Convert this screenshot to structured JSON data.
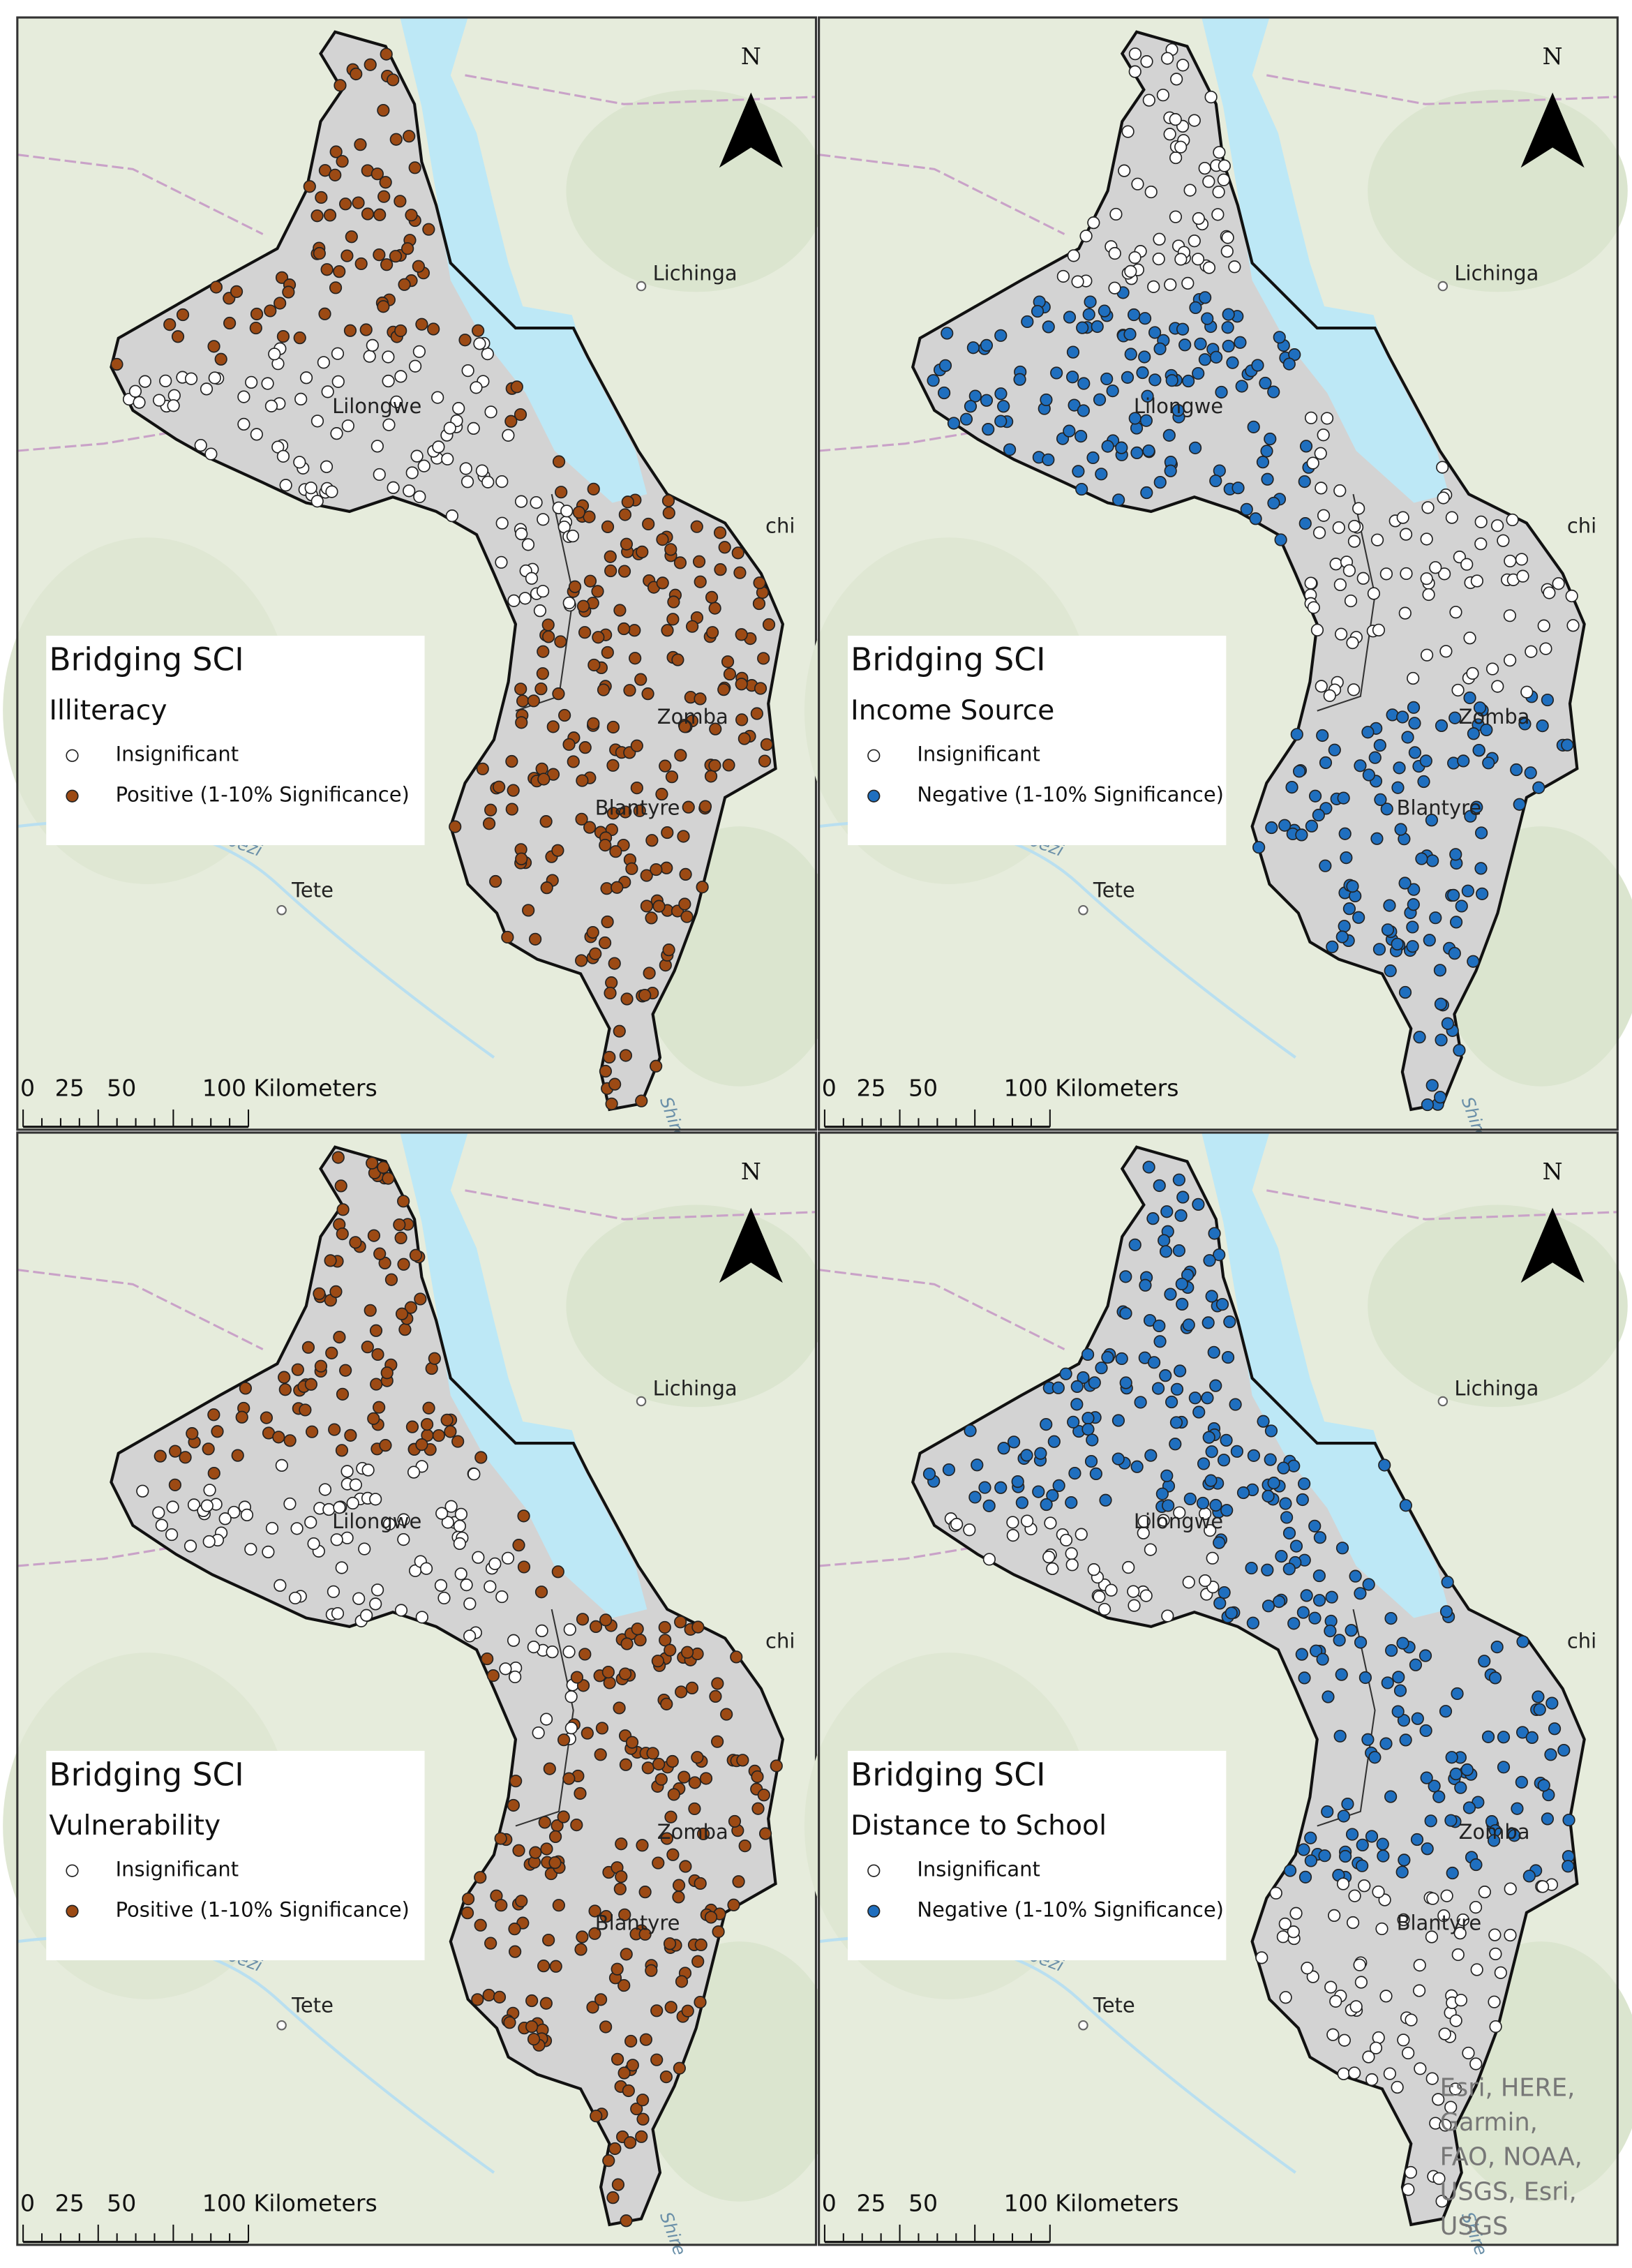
{
  "panels": [
    {
      "north": "N",
      "places": [
        "Lichinga",
        "Lilongwe",
        "chi",
        "Zomba",
        "Blantyre",
        "Tete",
        "Zambezi",
        "Shire"
      ],
      "legend": {
        "title": "Bridging SCI",
        "variable": "Illiteracy",
        "items": [
          {
            "label": "Insignificant",
            "color": "#ffffff"
          },
          {
            "label": "Positive (1-10% Significance)",
            "color": "#9c4a14"
          }
        ]
      },
      "scale": [
        "0",
        "25",
        "50",
        "100 Kilometers"
      ]
    },
    {
      "north": "N",
      "places": [
        "Lichinga",
        "Lilongwe",
        "chi",
        "Zomba",
        "Blantyre",
        "Tete",
        "Zambezi",
        "Shire"
      ],
      "legend": {
        "title": "Bridging SCI",
        "variable": "Income Source",
        "items": [
          {
            "label": "Insignificant",
            "color": "#ffffff"
          },
          {
            "label": "Negative (1-10% Significance)",
            "color": "#1f6fbf"
          }
        ]
      },
      "scale": [
        "0",
        "25",
        "50",
        "100 Kilometers"
      ]
    },
    {
      "north": "N",
      "places": [
        "Lichinga",
        "Lilongwe",
        "chi",
        "Zomba",
        "Blantyre",
        "Tete",
        "Zambezi",
        "Shire"
      ],
      "legend": {
        "title": "Bridging SCI",
        "variable": "Vulnerability",
        "items": [
          {
            "label": "Insignificant",
            "color": "#ffffff"
          },
          {
            "label": "Positive (1-10% Significance)",
            "color": "#9c4a14"
          }
        ]
      },
      "scale": [
        "0",
        "25",
        "50",
        "100 Kilometers"
      ]
    },
    {
      "north": "N",
      "places": [
        "Lichinga",
        "Lilongwe",
        "chi",
        "Zomba",
        "Blantyre",
        "Tete",
        "Zambezi",
        "Shire"
      ],
      "legend": {
        "title": "Bridging SCI",
        "variable": "Distance to School",
        "items": [
          {
            "label": "Insignificant",
            "color": "#ffffff"
          },
          {
            "label": "Negative (1-10% Significance)",
            "color": "#1f6fbf"
          }
        ]
      },
      "scale": [
        "0",
        "25",
        "50",
        "100 Kilometers"
      ]
    }
  ],
  "attribution": [
    "Esri, HERE,",
    "Garmin,",
    "FAO, NOAA,",
    "USGS, Esri,",
    "USGS"
  ]
}
